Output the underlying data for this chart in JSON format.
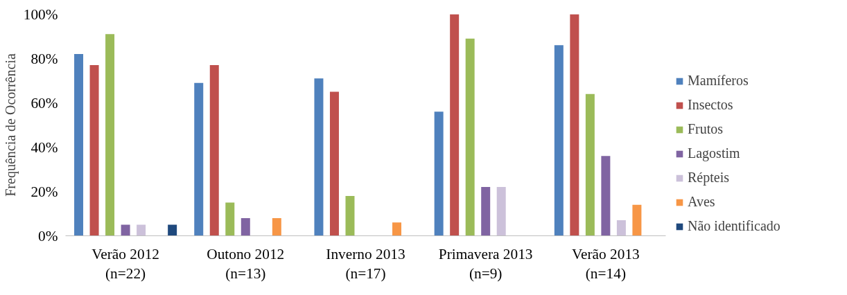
{
  "chart_data": {
    "type": "bar",
    "ylabel": "Frequência de Ocorrência",
    "categories": [
      "Verão 2012\n(n=22)",
      "Outono 2012\n(n=13)",
      "Inverno 2013\n(n=17)",
      "Primavera 2013\n(n=9)",
      "Verão 2013\n(n=14)"
    ],
    "series": [
      {
        "name": "Mamíferos",
        "color": "#4f81bd",
        "values": [
          82,
          69,
          71,
          56,
          86
        ]
      },
      {
        "name": "Insectos",
        "color": "#c0504d",
        "values": [
          77,
          77,
          65,
          100,
          100
        ]
      },
      {
        "name": "Frutos",
        "color": "#9bbb59",
        "values": [
          91,
          15,
          18,
          89,
          64
        ]
      },
      {
        "name": "Lagostim",
        "color": "#8064a2",
        "values": [
          5,
          8,
          0,
          22,
          36
        ]
      },
      {
        "name": "Répteis",
        "color": "#ccc1da",
        "values": [
          5,
          0,
          0,
          22,
          7
        ]
      },
      {
        "name": "Aves",
        "color": "#f79646",
        "values": [
          0,
          8,
          6,
          0,
          14
        ]
      },
      {
        "name": "Não identificado",
        "color": "#1f497d",
        "values": [
          5,
          0,
          0,
          0,
          0
        ]
      }
    ],
    "ylim": [
      0,
      100
    ],
    "yticks": [
      {
        "value": 0,
        "label": "0%"
      },
      {
        "value": 20,
        "label": "20%"
      },
      {
        "value": 40,
        "label": "40%"
      },
      {
        "value": 60,
        "label": "60%"
      },
      {
        "value": 80,
        "label": "80%"
      },
      {
        "value": 100,
        "label": "100%"
      }
    ],
    "grid": false,
    "legend": "right"
  }
}
